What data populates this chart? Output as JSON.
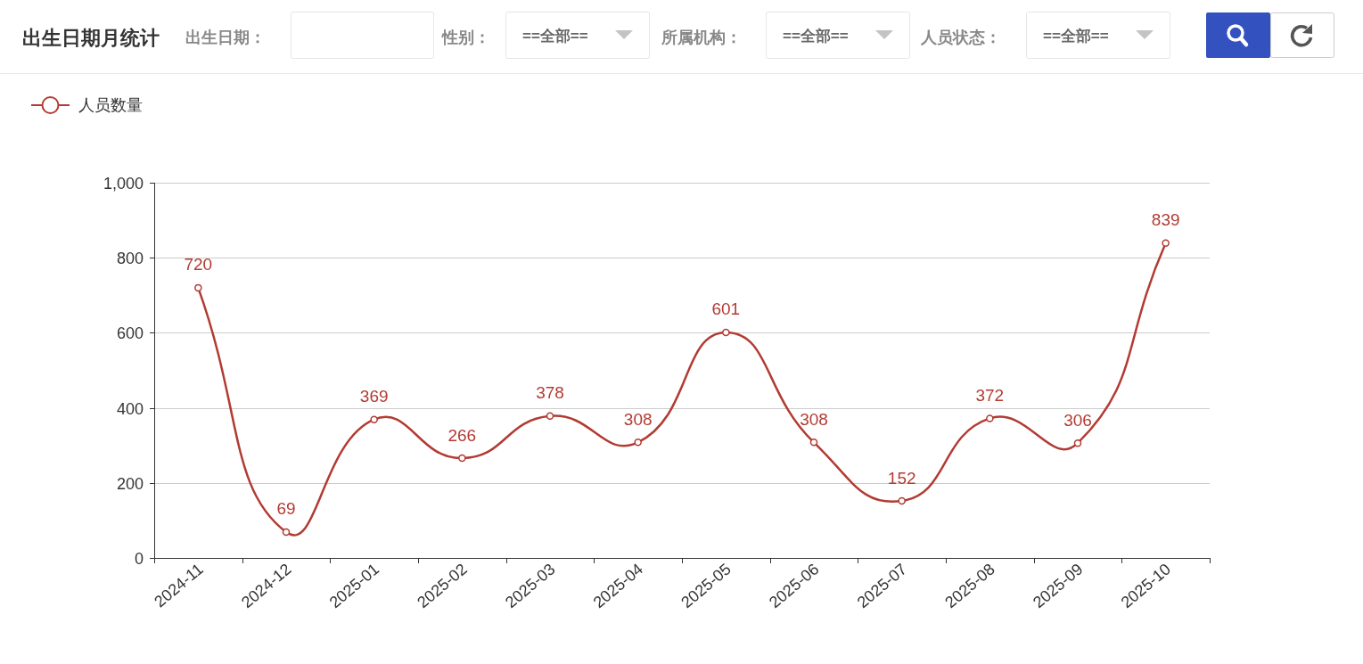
{
  "chart_data": {
    "type": "line",
    "title": "出生日期月统计",
    "annotations": [
      "出生日期：",
      "性别：",
      "==全部==",
      "所属机构：",
      "==全部==",
      "人员状态：",
      "==全部=="
    ],
    "categories": [
      "2024-11",
      "2024-12",
      "2025-01",
      "2025-02",
      "2025-03",
      "2025-04",
      "2025-05",
      "2025-06",
      "2025-07",
      "2025-08",
      "2025-09",
      "2025-10"
    ],
    "series": [
      {
        "name": "人员数量",
        "color": "#b23b33",
        "values": [
          720,
          69,
          369,
          266,
          378,
          308,
          601,
          308,
          152,
          372,
          306,
          839
        ]
      }
    ],
    "ylim": [
      0,
      1000
    ],
    "yticks": [
      0,
      200,
      400,
      600,
      800,
      {
        "value": 1000,
        "label": "1,000"
      }
    ],
    "grid": "y",
    "legend": "top left",
    "marker": "circle",
    "line_style": "solid",
    "data_labels": true
  }
}
